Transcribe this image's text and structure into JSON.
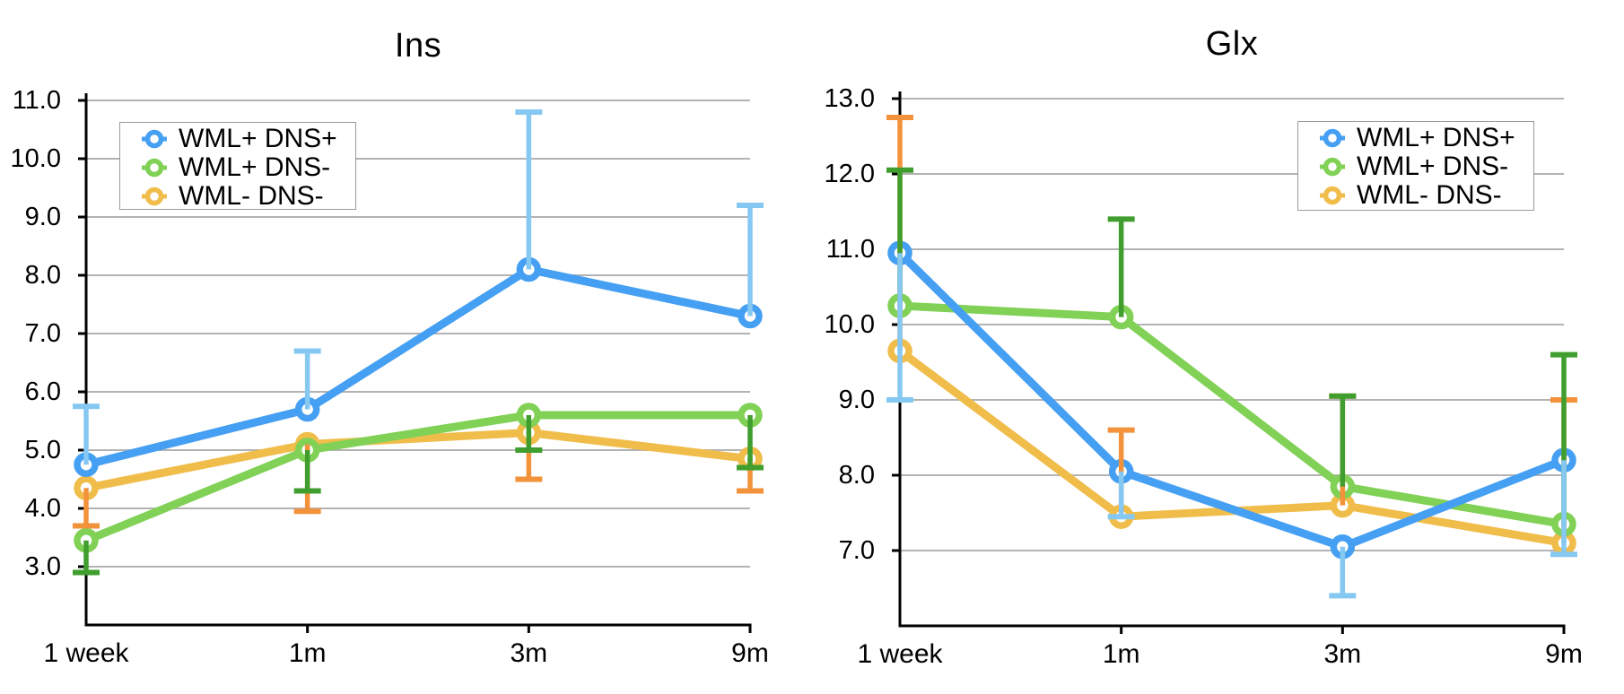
{
  "style": {
    "background": "#ffffff",
    "grid_color": "#b3b3b3",
    "axis_color": "#000000",
    "text_color": "#000000",
    "legend_border_color": "#9b9b9b"
  },
  "chart_data": [
    {
      "type": "line",
      "title": "Ins",
      "categories": [
        "1 week",
        "1m",
        "3m",
        "9m"
      ],
      "y_tick_labels": [
        "11.0",
        "10.0",
        "9.0",
        "8.0",
        "7.0",
        "6.0",
        "5.0",
        "4.0",
        "3.0"
      ],
      "ylim": [
        2.0,
        11.0
      ],
      "grid": true,
      "legend_position": "top-left",
      "series": [
        {
          "name": "WML+ DNS+",
          "color": "#459ff2",
          "error_color": "#85c8f2",
          "error_dir": "up",
          "values": [
            4.75,
            5.7,
            8.1,
            7.3
          ],
          "error_ends": [
            5.75,
            6.7,
            10.8,
            9.2
          ]
        },
        {
          "name": "WML+ DNS-",
          "color": "#80d155",
          "error_color": "#3f9e2e",
          "error_dir": "down",
          "values": [
            3.45,
            5.0,
            5.6,
            5.6
          ],
          "error_ends": [
            2.9,
            4.3,
            5.0,
            4.7
          ]
        },
        {
          "name": "WML- DNS-",
          "color": "#f0bd4b",
          "error_color": "#f2923b",
          "error_dir": "down",
          "values": [
            4.35,
            5.1,
            5.3,
            4.85
          ],
          "error_ends": [
            3.7,
            3.95,
            4.5,
            4.3
          ]
        }
      ]
    },
    {
      "type": "line",
      "title": "Glx",
      "categories": [
        "1 week",
        "1m",
        "3m",
        "9m"
      ],
      "y_tick_labels": [
        "13.0",
        "12.0",
        "11.0",
        "10.0",
        "9.0",
        "8.0",
        "7.0"
      ],
      "ylim": [
        6.0,
        13.0
      ],
      "grid": true,
      "legend_position": "top-right",
      "series": [
        {
          "name": "WML+ DNS+",
          "color": "#459ff2",
          "error_color": "#85c8f2",
          "error_dir": "down",
          "values": [
            10.95,
            8.05,
            7.05,
            8.2
          ],
          "error_ends": [
            9.0,
            7.45,
            6.4,
            6.95
          ]
        },
        {
          "name": "WML+ DNS-",
          "color": "#80d155",
          "error_color": "#3f9e2e",
          "error_dir": "up",
          "values": [
            10.25,
            10.1,
            7.85,
            7.35
          ],
          "error_ends": [
            12.05,
            11.4,
            9.05,
            9.6
          ]
        },
        {
          "name": "WML- DNS-",
          "color": "#f0bd4b",
          "error_color": "#f2923b",
          "error_dir": "up",
          "values": [
            9.65,
            7.45,
            7.6,
            7.1
          ],
          "error_ends": [
            12.75,
            8.6,
            9.05,
            9.0
          ]
        }
      ]
    }
  ]
}
